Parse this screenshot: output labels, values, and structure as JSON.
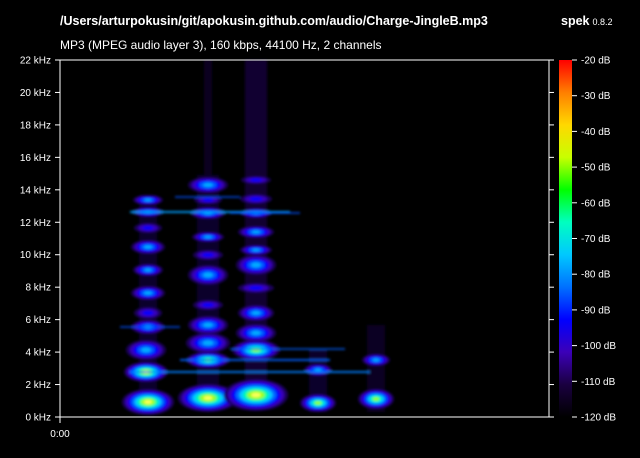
{
  "header": {
    "file_path": "/Users/arturpokusin/git/apokusin.github.com/audio/Charge-JingleB.mp3",
    "app_name": "spek",
    "app_version": "0.8.2",
    "audio_info": "MP3 (MPEG audio layer 3), 160 kbps, 44100 Hz, 2 channels"
  },
  "spectrogram": {
    "freq_axis": {
      "ticks": [
        "0 kHz",
        "2 kHz",
        "4 kHz",
        "6 kHz",
        "8 kHz",
        "10 kHz",
        "12 kHz",
        "14 kHz",
        "16 kHz",
        "18 kHz",
        "20 kHz",
        "22 kHz"
      ]
    },
    "time_axis": {
      "ticks": [
        "0:00"
      ]
    },
    "color_scale": {
      "ticks": [
        "-20 dB",
        "-30 dB",
        "-40 dB",
        "-50 dB",
        "-60 dB",
        "-70 dB",
        "-80 dB",
        "-90 dB",
        "-100 dB",
        "-110 dB",
        "-120 dB"
      ],
      "colors": [
        "#ff0000",
        "#ff7f00",
        "#ffd800",
        "#c8ff00",
        "#00ff00",
        "#00ffc0",
        "#00c8ff",
        "#0070ff",
        "#0000ff",
        "#3c00b8",
        "#1a0040",
        "#000000"
      ]
    }
  }
}
